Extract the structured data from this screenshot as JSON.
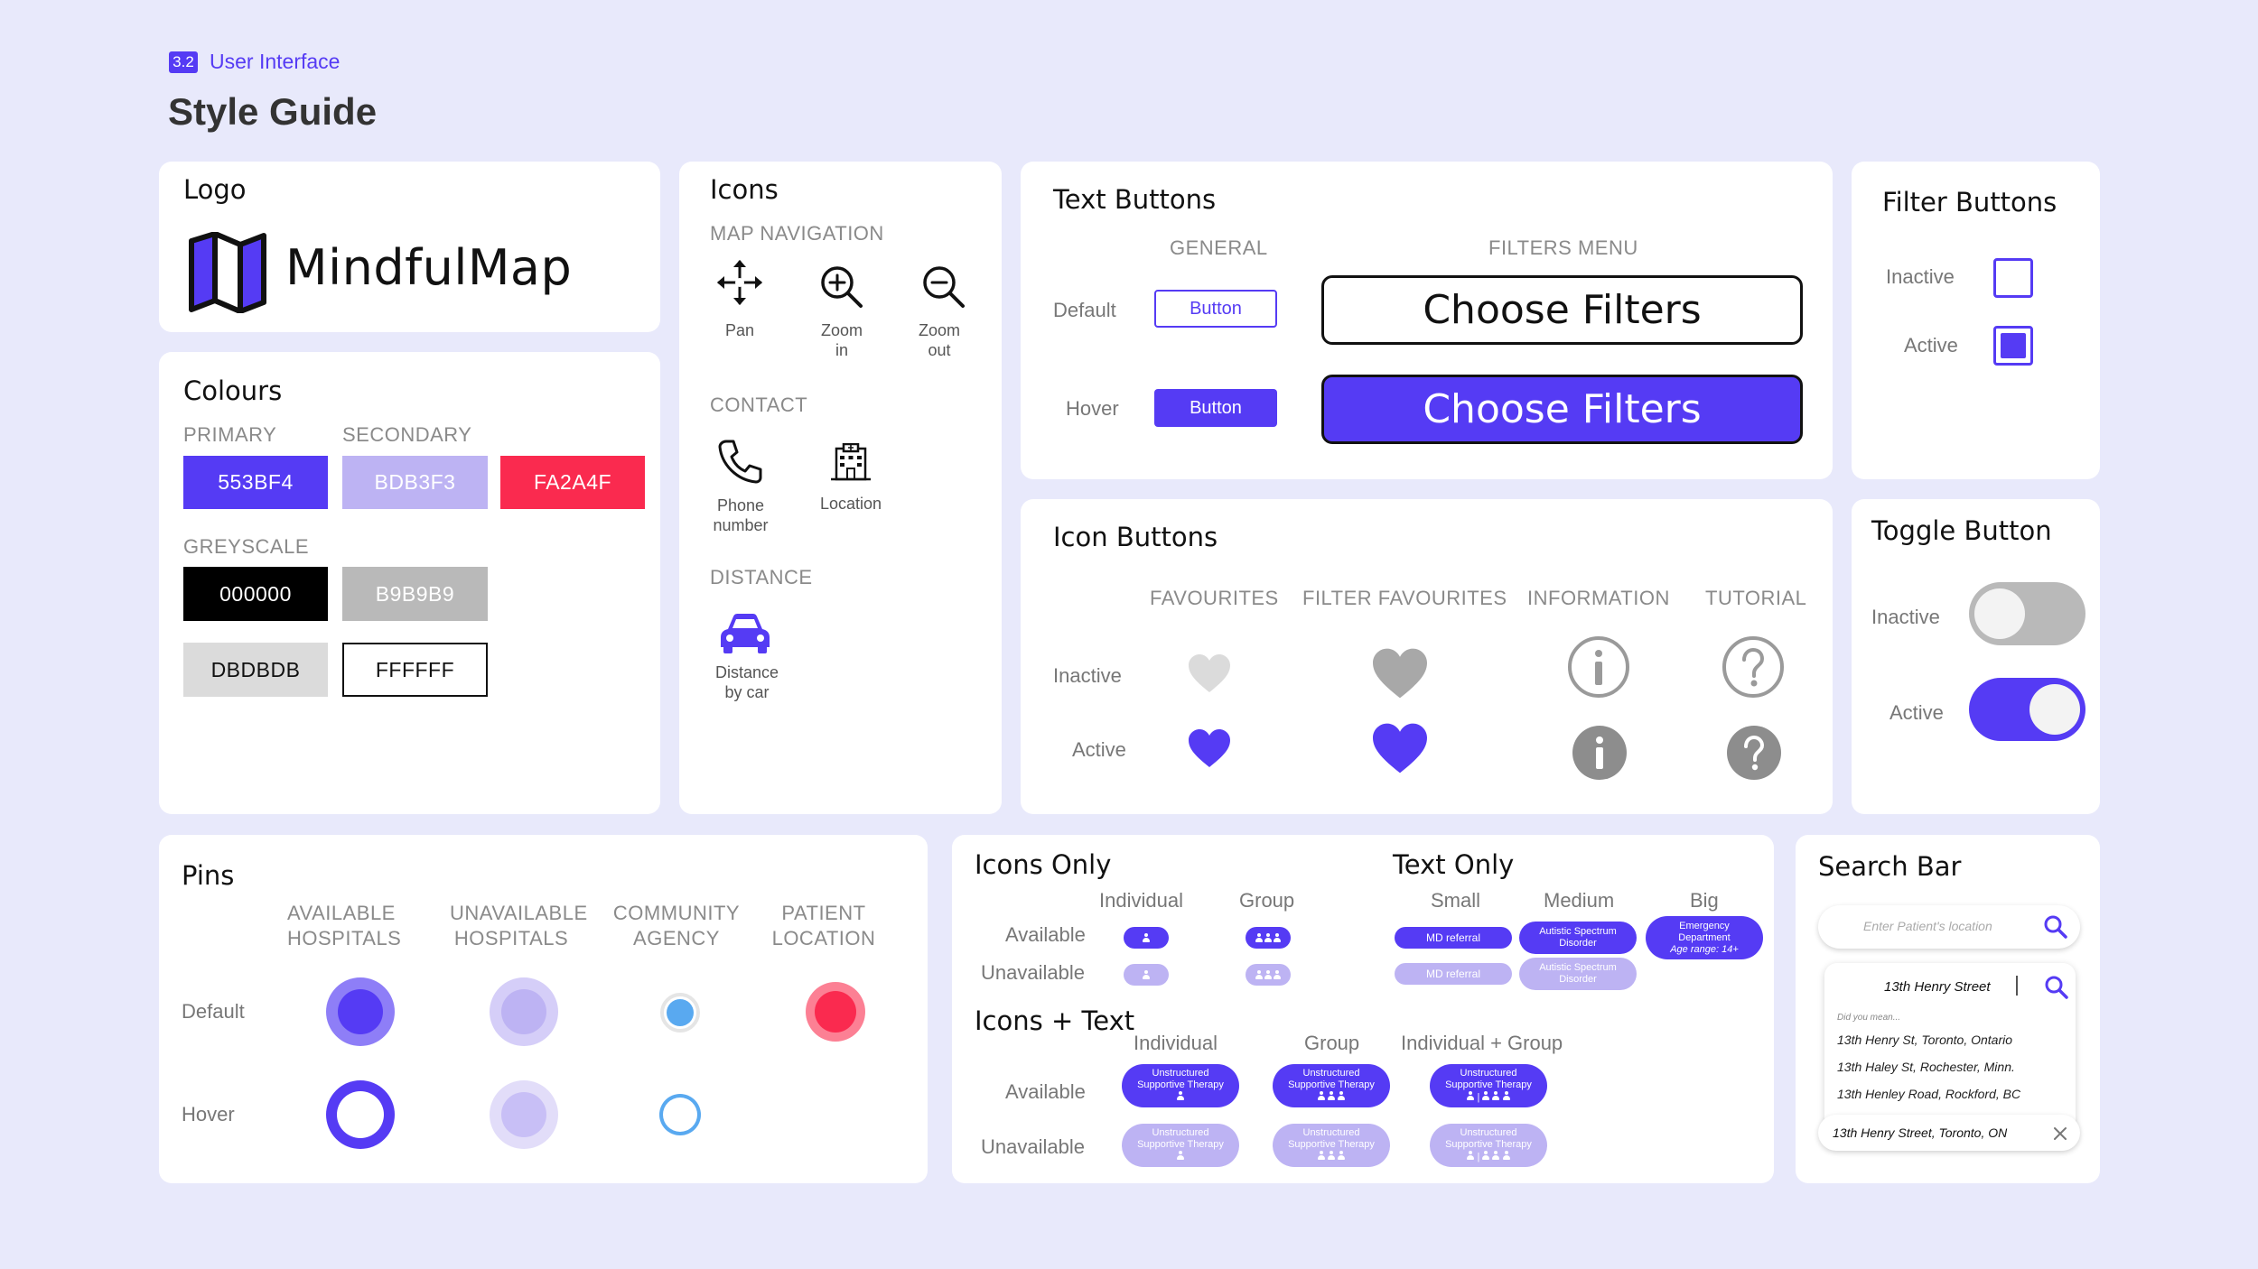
{
  "header": {
    "badge": "3.2",
    "section": "User Interface",
    "title": "Style Guide"
  },
  "logo": {
    "title": "Logo",
    "wordmark": "MindfulMap"
  },
  "colours": {
    "title": "Colours",
    "primary_label": "PRIMARY",
    "secondary_label": "SECONDARY",
    "greyscale_label": "GREYSCALE",
    "swatches": [
      {
        "hex": "553BF4",
        "color": "#553BF4",
        "text": "#ffffff"
      },
      {
        "hex": "BDB3F3",
        "color": "#BDB3F3",
        "text": "#ffffff"
      },
      {
        "hex": "FA2A4F",
        "color": "#FA2A4F",
        "text": "#ffffff"
      },
      {
        "hex": "000000",
        "color": "#000000",
        "text": "#ffffff"
      },
      {
        "hex": "B9B9B9",
        "color": "#B9B9B9",
        "text": "#ffffff"
      },
      {
        "hex": "DBDBDB",
        "color": "#DBDBDB",
        "text": "#111111"
      },
      {
        "hex": "FFFFFF",
        "color": "#FFFFFF",
        "text": "#111111"
      }
    ]
  },
  "icons": {
    "title": "Icons",
    "map_nav_label": "MAP NAVIGATION",
    "pan": "Pan",
    "zoom_in_1": "Zoom",
    "zoom_in_2": "in",
    "zoom_out_1": "Zoom",
    "zoom_out_2": "out",
    "contact_label": "CONTACT",
    "phone_1": "Phone",
    "phone_2": "number",
    "location": "Location",
    "distance_label": "DISTANCE",
    "car_1": "Distance",
    "car_2": "by car"
  },
  "text_buttons": {
    "title": "Text Buttons",
    "general": "GENERAL",
    "filters_menu": "FILTERS MENU",
    "default": "Default",
    "hover": "Hover",
    "button": "Button",
    "choose_filters": "Choose Filters"
  },
  "filter_buttons": {
    "title": "Filter Buttons",
    "inactive": "Inactive",
    "active": "Active"
  },
  "icon_buttons": {
    "title": "Icon Buttons",
    "favourites": "FAVOURITES",
    "filter_favourites": "FILTER FAVOURITES",
    "information": "INFORMATION",
    "tutorial": "TUTORIAL",
    "inactive": "Inactive",
    "active": "Active"
  },
  "toggle": {
    "title": "Toggle Button",
    "inactive": "Inactive",
    "active": "Active"
  },
  "pins": {
    "title": "Pins",
    "available_1": "AVAILABLE",
    "available_2": "HOSPITALS",
    "unavailable_1": "UNAVAILABLE",
    "unavailable_2": "HOSPITALS",
    "community_1": "COMMUNITY",
    "community_2": "AGENCY",
    "patient_1": "PATIENT",
    "patient_2": "LOCATION",
    "default": "Default",
    "hover": "Hover"
  },
  "icons_only": {
    "title": "Icons Only",
    "individual": "Individual",
    "group": "Group",
    "available": "Available",
    "unavailable": "Unavailable"
  },
  "text_only": {
    "title": "Text Only",
    "small": "Small",
    "medium": "Medium",
    "big": "Big",
    "md_referral": "MD referral",
    "autistic_1": "Autistic Spectrum",
    "autistic_2": "Disorder",
    "emergency_1": "Emergency",
    "emergency_2": "Department",
    "emergency_3": "Age range: 14+"
  },
  "icons_text": {
    "title": "Icons + Text",
    "individual": "Individual",
    "group": "Group",
    "ind_group": "Individual + Group",
    "available": "Available",
    "unavailable": "Unavailable",
    "pill_1": "Unstructured",
    "pill_2": "Supportive Therapy"
  },
  "search": {
    "title": "Search Bar",
    "placeholder": "Enter Patient's location",
    "typed": "13th Henry Street",
    "did_you_mean": "Did you mean...",
    "suggestions": [
      "13th Henry St, Toronto, Ontario",
      "13th Haley St, Rochester, Minn.",
      "13th Henley Road, Rockford, BC"
    ],
    "selected": "13th Henry Street, Toronto, ON"
  }
}
